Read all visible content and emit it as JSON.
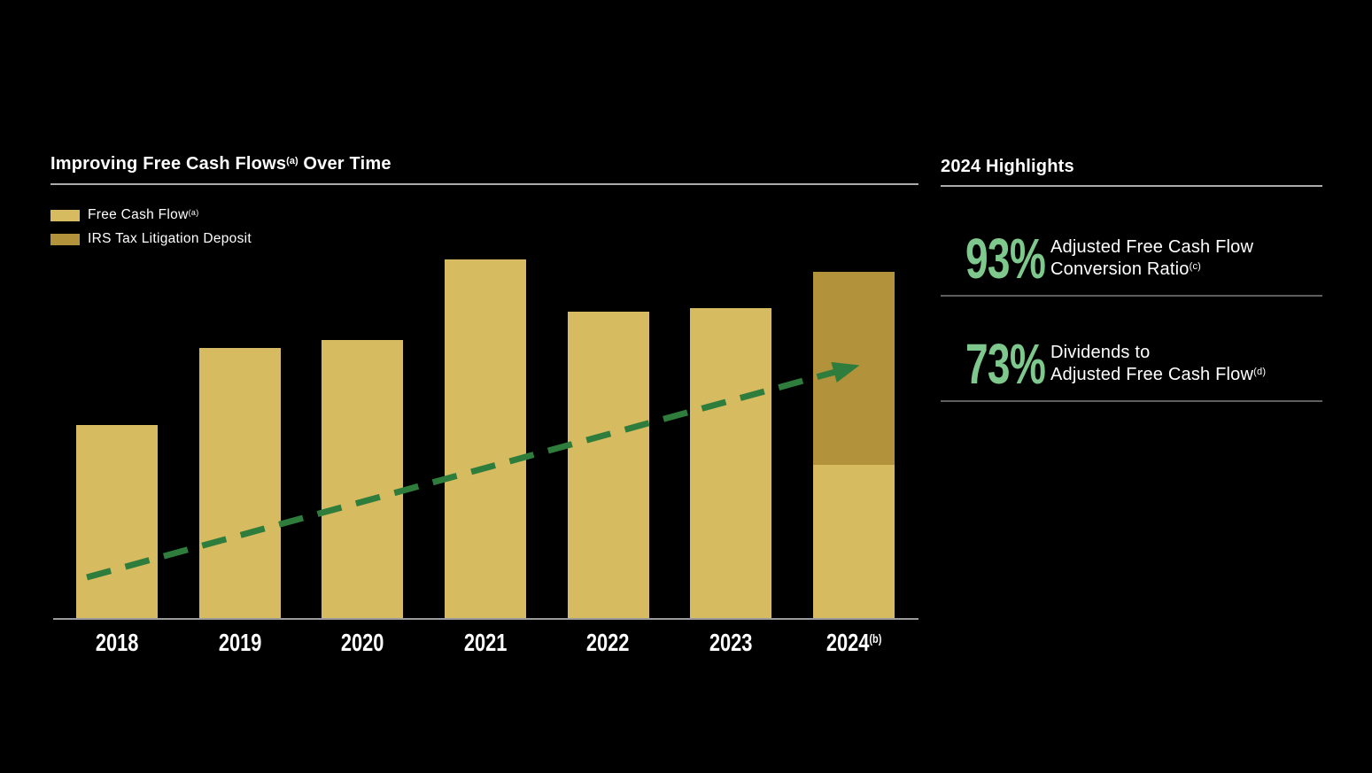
{
  "slide": {
    "background": "#000000",
    "text_color": "#ffffff"
  },
  "chart_section": {
    "title": {
      "main": "Improving Free Cash Flows",
      "sup": "(a)",
      "suffix": " Over Time"
    },
    "legend": [
      {
        "label": "Free Cash Flow",
        "sup": "(a)",
        "swatch_color": "#d6bb60"
      },
      {
        "label": "IRS Tax Litigation Deposit",
        "sup": "",
        "swatch_color": "#b2923a"
      }
    ]
  },
  "chart_data": {
    "type": "bar",
    "stacked": true,
    "title": "Improving Free Cash Flows(a) Over Time",
    "categories": [
      "2018",
      "2019",
      "2020",
      "2021",
      "2022",
      "2023",
      "2024"
    ],
    "category_sups": [
      "",
      "",
      "",
      "",
      "",
      "",
      "(b)"
    ],
    "value_axis_shown": false,
    "unit": "relative bar height, % of plot area (no numeric labels shown in chart)",
    "series": [
      {
        "name": "Free Cash Flow",
        "color": "#d6bb60",
        "values": [
          48,
          67,
          69,
          89,
          76,
          77,
          38
        ]
      },
      {
        "name": "IRS Tax Litigation Deposit",
        "color": "#b2923a",
        "values": [
          0,
          0,
          0,
          0,
          0,
          0,
          48
        ]
      }
    ],
    "grid": false,
    "legend_position": "top-left",
    "axis_color": "#9a9a9a",
    "trend_arrow": {
      "style": "dashed",
      "color": "#2e7d3c",
      "direction": "up",
      "from": {
        "x_pct": 3.9,
        "y_pct_from_top": 89.9
      },
      "to": {
        "x_pct": 92.6,
        "y_pct_from_top": 37.6
      }
    }
  },
  "highlights": {
    "title": "2024 Highlights",
    "accent_color": "#7ec88d",
    "stats": [
      {
        "value": "93%",
        "line1": "Adjusted Free Cash Flow",
        "line2": "Conversion Ratio",
        "sup": "(c)"
      },
      {
        "value": "73%",
        "line1": "Dividends to",
        "line2": "Adjusted Free Cash Flow",
        "sup": "(d)"
      }
    ]
  }
}
